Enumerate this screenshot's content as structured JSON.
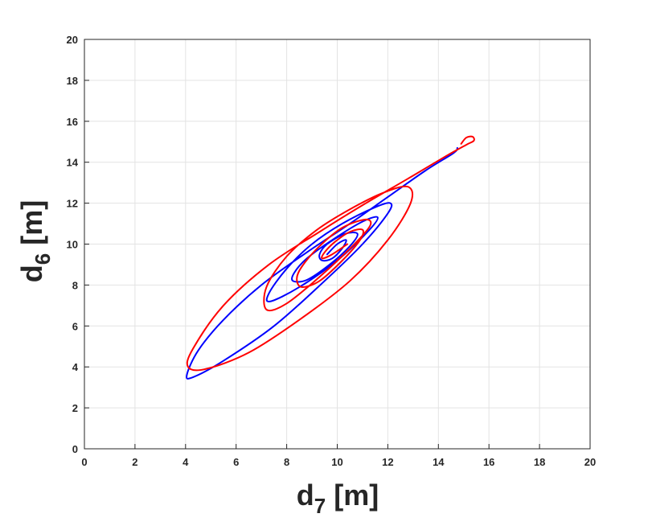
{
  "chart_data": {
    "type": "line",
    "title": "",
    "xlabel": {
      "main": "d",
      "sub": "7",
      "unit": " [m]"
    },
    "ylabel": {
      "main": "d",
      "sub": "6",
      "unit": " [m]"
    },
    "xlim": [
      0,
      20
    ],
    "ylim": [
      0,
      20
    ],
    "xticks": [
      "0",
      "2",
      "4",
      "6",
      "8",
      "10",
      "12",
      "14",
      "16",
      "18",
      "20"
    ],
    "yticks": [
      "0",
      "2",
      "4",
      "6",
      "8",
      "10",
      "12",
      "14",
      "16",
      "18",
      "20"
    ],
    "grid": true,
    "legend": "none",
    "series": [
      {
        "color": "#0000ff",
        "x": [
          14.75,
          14.6,
          13.5,
          12.0,
          10.5,
          8.8,
          7.0,
          5.5,
          4.5,
          4.05,
          4.3,
          5.5,
          7.5,
          9.5,
          11.0,
          12.0,
          12.1,
          11.5,
          10.2,
          9.0,
          8.0,
          7.3,
          7.35,
          8.5,
          10.0,
          11.2,
          11.6,
          11.0,
          9.8,
          8.8,
          8.3,
          8.25,
          8.8,
          9.7,
          10.5,
          10.8,
          10.3,
          9.6,
          9.3,
          9.4,
          9.8,
          10.2,
          10.35,
          10.0,
          9.6
        ],
        "y": [
          14.7,
          14.45,
          13.6,
          12.3,
          11.0,
          9.6,
          8.0,
          6.3,
          4.8,
          3.6,
          3.5,
          4.3,
          6.0,
          8.2,
          10.0,
          11.5,
          12.0,
          11.8,
          11.0,
          10.0,
          8.8,
          7.6,
          7.2,
          7.9,
          9.2,
          10.6,
          11.3,
          11.1,
          10.2,
          9.3,
          8.6,
          8.2,
          8.25,
          9.0,
          9.9,
          10.5,
          10.5,
          10.0,
          9.5,
          9.2,
          9.3,
          9.8,
          10.2,
          10.0,
          9.5
        ]
      },
      {
        "color": "#ff0000",
        "x": [
          14.9,
          15.1,
          15.35,
          15.4,
          15.1,
          14.3,
          12.8,
          11.0,
          9.3,
          7.3,
          5.5,
          4.3,
          4.1,
          4.8,
          6.5,
          8.5,
          10.5,
          12.0,
          12.9,
          12.8,
          11.8,
          10.5,
          9.2,
          8.0,
          7.2,
          7.2,
          8.0,
          9.3,
          10.6,
          11.3,
          11.1,
          10.2,
          9.3,
          8.6,
          8.4,
          8.6,
          9.3,
          10.2,
          10.9,
          11.0,
          10.5,
          9.9,
          9.5,
          9.4,
          9.8,
          10.4
        ],
        "y": [
          14.9,
          15.2,
          15.25,
          15.05,
          14.85,
          14.3,
          13.2,
          11.9,
          10.6,
          9.0,
          7.0,
          4.9,
          4.0,
          3.9,
          4.7,
          6.3,
          8.2,
          10.2,
          12.0,
          12.8,
          12.5,
          11.7,
          10.7,
          9.4,
          7.9,
          6.8,
          7.1,
          8.4,
          9.9,
          10.9,
          11.2,
          10.8,
          9.9,
          8.9,
          8.3,
          7.9,
          8.2,
          9.2,
          10.2,
          10.7,
          10.6,
          10.1,
          9.6,
          9.3,
          9.5,
          10.0
        ]
      }
    ]
  }
}
